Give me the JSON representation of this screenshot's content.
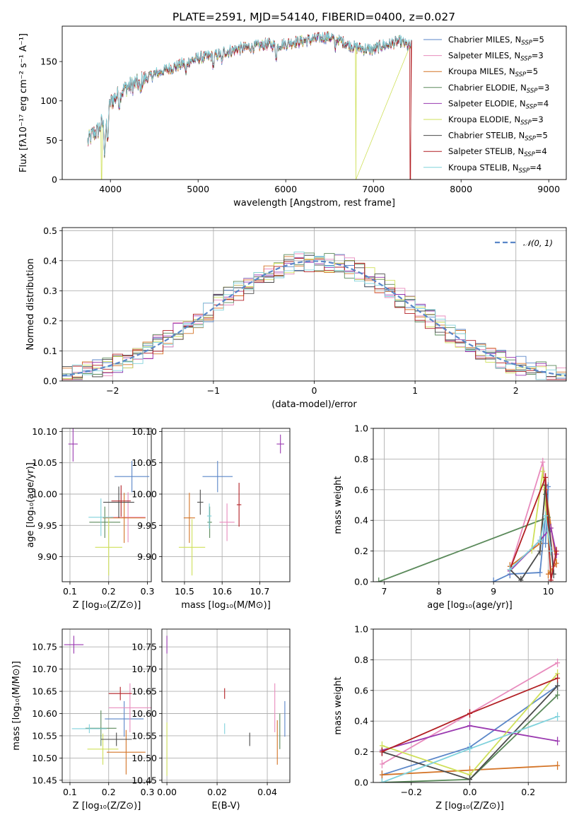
{
  "figure": {
    "title": "PLATE=2591, MJD=54140, FIBERID=0400, z=0.027"
  },
  "chart_data": [
    {
      "id": "spectrum",
      "type": "line",
      "title": "PLATE=2591, MJD=54140, FIBERID=0400, z=0.027",
      "xlabel": "wavelength [Angstrom, rest frame]",
      "ylabel": "Flux [fλ10⁻¹⁷ erg cm⁻² s⁻¹ A⁻¹]",
      "xlim": [
        3450,
        9200
      ],
      "ylim": [
        0,
        195
      ],
      "xticks": [
        4000,
        5000,
        6000,
        7000,
        8000,
        9000
      ],
      "yticks": [
        0,
        50,
        100,
        150
      ],
      "grid": false,
      "legend": "upper right",
      "continuum": {
        "x": [
          3740,
          3800,
          3860,
          3900,
          3950,
          4000,
          4100,
          4200,
          4300,
          4400,
          4500,
          4600,
          4700,
          4800,
          4900,
          5000,
          5100,
          5200,
          5300,
          5400,
          5500,
          5600,
          5700,
          5800,
          5900,
          6000,
          6100,
          6200,
          6300,
          6400,
          6500,
          6600,
          6700,
          6800,
          6900,
          7000,
          7100,
          7200,
          7300,
          7400
        ],
        "y": [
          48,
          58,
          62,
          72,
          70,
          98,
          110,
          118,
          122,
          128,
          134,
          138,
          142,
          146,
          150,
          154,
          156,
          158,
          162,
          164,
          167,
          168,
          170,
          172,
          170,
          172,
          175,
          176,
          178,
          180,
          181,
          178,
          172,
          168,
          166,
          165,
          170,
          172,
          176,
          170
        ]
      },
      "series": [
        {
          "name": "Chabrier MILES, N_SSP=5",
          "color": "#5a86c8",
          "dropout": null
        },
        {
          "name": "Salpeter MILES, N_SSP=3",
          "color": "#e88bbd",
          "dropout": null
        },
        {
          "name": "Kroupa MILES, N_SSP=5",
          "color": "#d47427",
          "dropout": null
        },
        {
          "name": "Chabrier ELODIE, N_SSP=3",
          "color": "#5b8a5b",
          "dropout": null
        },
        {
          "name": "Salpeter ELODIE, N_SSP=4",
          "color": "#9a39b0",
          "dropout": null
        },
        {
          "name": "Kroupa ELODIE, N_SSP=3",
          "color": "#cfe05a",
          "dropout": [
            3900,
            6800
          ]
        },
        {
          "name": "Chabrier STELIB, N_SSP=5",
          "color": "#4b4b4b",
          "dropout": null
        },
        {
          "name": "Salpeter STELIB, N_SSP=4",
          "color": "#b21f24",
          "dropout": [
            null,
            7420
          ]
        },
        {
          "name": "Kroupa STELIB, N_SSP=4",
          "color": "#80d2dc",
          "dropout": null
        }
      ]
    },
    {
      "id": "residuals",
      "type": "histogram",
      "xlabel": "(data-model)/error",
      "ylabel": "Normed distribution",
      "xlim": [
        -2.5,
        2.5
      ],
      "ylim": [
        0,
        0.51
      ],
      "xticks": [
        -2,
        -1,
        0,
        1,
        2
      ],
      "yticks": [
        0.0,
        0.1,
        0.2,
        0.3,
        0.4,
        0.5
      ],
      "grid": true,
      "legend": "upper right",
      "reference": {
        "name": "𝒩(0, 1)",
        "color": "#5a86c8",
        "mean": 0,
        "sigma": 1
      },
      "bin_width": 0.1
    },
    {
      "id": "age-vs-Z",
      "type": "errorbar",
      "xlabel": "Z [log₁₀(Z/Z⊙)]",
      "ylabel": "age  [log₁₀(age/yr)]",
      "xlim": [
        0.08,
        0.31
      ],
      "ylim": [
        9.86,
        10.105
      ],
      "xticks": [
        0.1,
        0.2,
        0.3
      ],
      "yticks": [
        9.9,
        9.95,
        10.0,
        10.05,
        10.1
      ],
      "grid": true,
      "points": [
        {
          "series": "Chabrier MILES",
          "x": 0.26,
          "y": 10.028,
          "xerr": 0.045,
          "yerr": 0.025
        },
        {
          "series": "Salpeter MILES",
          "x": 0.25,
          "y": 9.963,
          "xerr": 0.045,
          "yerr": 0.04
        },
        {
          "series": "Kroupa MILES",
          "x": 0.24,
          "y": 9.962,
          "xerr": 0.055,
          "yerr": 0.04
        },
        {
          "series": "Chabrier ELODIE",
          "x": 0.19,
          "y": 9.955,
          "xerr": 0.04,
          "yerr": 0.025
        },
        {
          "series": "Salpeter ELODIE",
          "x": 0.108,
          "y": 10.08,
          "xerr": 0.012,
          "yerr": 0.028
        },
        {
          "series": "Kroupa ELODIE",
          "x": 0.2,
          "y": 9.915,
          "xerr": 0.035,
          "yerr": 0.045
        },
        {
          "series": "Chabrier STELIB",
          "x": 0.226,
          "y": 9.987,
          "xerr": 0.04,
          "yerr": 0.025
        },
        {
          "series": "Salpeter STELIB",
          "x": 0.232,
          "y": 9.989,
          "xerr": 0.025,
          "yerr": 0.025
        },
        {
          "series": "Kroupa STELIB",
          "x": 0.18,
          "y": 9.963,
          "xerr": 0.032,
          "yerr": 0.03
        }
      ]
    },
    {
      "id": "age-vs-mass",
      "type": "errorbar",
      "xlabel": "mass [log₁₀(M/M⊙)]",
      "ylabel": "",
      "xlim": [
        10.44,
        10.78
      ],
      "ylim": [
        9.86,
        10.105
      ],
      "xticks": [
        10.5,
        10.6,
        10.7
      ],
      "yticks": [
        9.9,
        9.95,
        10.0,
        10.05,
        10.1
      ],
      "grid": true,
      "points": [
        {
          "series": "Chabrier MILES",
          "x": 10.588,
          "y": 10.028,
          "xerr": 0.04,
          "yerr": 0.025
        },
        {
          "series": "Salpeter MILES",
          "x": 10.613,
          "y": 9.955,
          "xerr": 0.02,
          "yerr": 0.03
        },
        {
          "series": "Kroupa MILES",
          "x": 10.513,
          "y": 9.962,
          "xerr": 0.015,
          "yerr": 0.04
        },
        {
          "series": "Chabrier ELODIE",
          "x": 10.567,
          "y": 9.955,
          "xerr": 0.006,
          "yerr": 0.025
        },
        {
          "series": "Salpeter ELODIE",
          "x": 10.755,
          "y": 10.08,
          "xerr": 0.01,
          "yerr": 0.015
        },
        {
          "series": "Kroupa ELODIE",
          "x": 10.52,
          "y": 9.915,
          "xerr": 0.035,
          "yerr": 0.045
        },
        {
          "series": "Chabrier STELIB",
          "x": 10.542,
          "y": 9.987,
          "xerr": 0.008,
          "yerr": 0.02
        },
        {
          "series": "Salpeter STELIB",
          "x": 10.645,
          "y": 9.983,
          "xerr": 0.006,
          "yerr": 0.035
        },
        {
          "series": "Kroupa STELIB",
          "x": 10.566,
          "y": 9.965,
          "xerr": 0.006,
          "yerr": 0.02
        }
      ]
    },
    {
      "id": "weight-vs-age",
      "type": "line",
      "xlabel": "age  [log₁₀(age/yr)]",
      "ylabel": "mass weight",
      "xlim": [
        6.8,
        10.33
      ],
      "ylim": [
        0,
        1.0
      ],
      "xticks": [
        7,
        8,
        9,
        10
      ],
      "yticks": [
        0.0,
        0.2,
        0.4,
        0.6,
        0.8,
        1.0
      ],
      "grid": true,
      "series": [
        {
          "name": "Chabrier MILES",
          "points": [
            [
              9.0,
              0.0
            ],
            [
              9.3,
              0.05
            ],
            [
              9.85,
              0.06
            ],
            [
              10.0,
              0.62
            ],
            [
              9.95,
              0.25
            ]
          ]
        },
        {
          "name": "Salpeter MILES",
          "points": [
            [
              9.3,
              0.08
            ],
            [
              9.9,
              0.78
            ],
            [
              10.1,
              0.1
            ]
          ]
        },
        {
          "name": "Kroupa MILES",
          "points": [
            [
              9.3,
              0.1
            ],
            [
              9.85,
              0.25
            ],
            [
              9.95,
              0.6
            ],
            [
              10.15,
              0.12
            ],
            [
              10.0,
              0.05
            ]
          ]
        },
        {
          "name": "Chabrier ELODIE",
          "points": [
            [
              6.9,
              0.0
            ],
            [
              10.0,
              0.42
            ],
            [
              9.95,
              0.57
            ]
          ]
        },
        {
          "name": "Salpeter ELODIE",
          "points": [
            [
              9.3,
              0.07
            ],
            [
              9.85,
              0.27
            ],
            [
              10.05,
              0.35
            ],
            [
              10.15,
              0.18
            ]
          ]
        },
        {
          "name": "Kroupa ELODIE",
          "points": [
            [
              9.7,
              0.21
            ],
            [
              9.9,
              0.72
            ],
            [
              10.05,
              0.07
            ]
          ]
        },
        {
          "name": "Chabrier STELIB",
          "points": [
            [
              9.3,
              0.08
            ],
            [
              9.5,
              0.01
            ],
            [
              9.85,
              0.2
            ],
            [
              9.95,
              0.63
            ],
            [
              10.1,
              0.05
            ]
          ]
        },
        {
          "name": "Salpeter STELIB",
          "points": [
            [
              9.3,
              0.08
            ],
            [
              9.95,
              0.68
            ],
            [
              10.05,
              0.01
            ],
            [
              10.15,
              0.2
            ]
          ]
        },
        {
          "name": "Kroupa STELIB",
          "points": [
            [
              9.3,
              0.08
            ],
            [
              9.85,
              0.27
            ],
            [
              9.95,
              0.43
            ],
            [
              10.05,
              0.2
            ]
          ]
        }
      ]
    },
    {
      "id": "mass-vs-Z",
      "type": "errorbar",
      "xlabel": "Z [log₁₀(Z/Z⊙)]",
      "ylabel": "mass [log₁₀(M/M⊙)]",
      "xlim": [
        0.08,
        0.31
      ],
      "ylim": [
        10.445,
        10.79
      ],
      "xticks": [
        0.1,
        0.2,
        0.3
      ],
      "yticks": [
        10.45,
        10.5,
        10.55,
        10.6,
        10.65,
        10.7,
        10.75
      ],
      "grid": true,
      "points": [
        {
          "series": "Chabrier MILES",
          "x": 0.24,
          "y": 10.588,
          "xerr": 0.05,
          "yerr": 0.04
        },
        {
          "series": "Salpeter MILES",
          "x": 0.255,
          "y": 10.613,
          "xerr": 0.055,
          "yerr": 0.055
        },
        {
          "series": "Kroupa MILES",
          "x": 0.245,
          "y": 10.513,
          "xerr": 0.05,
          "yerr": 0.05
        },
        {
          "series": "Chabrier ELODIE",
          "x": 0.18,
          "y": 10.567,
          "xerr": 0.04,
          "yerr": 0.04
        },
        {
          "series": "Salpeter ELODIE",
          "x": 0.11,
          "y": 10.755,
          "xerr": 0.025,
          "yerr": 0.02
        },
        {
          "series": "Kroupa ELODIE",
          "x": 0.185,
          "y": 10.52,
          "xerr": 0.04,
          "yerr": 0.035
        },
        {
          "series": "Chabrier STELIB",
          "x": 0.22,
          "y": 10.542,
          "xerr": 0.04,
          "yerr": 0.015
        },
        {
          "series": "Salpeter STELIB",
          "x": 0.23,
          "y": 10.645,
          "xerr": 0.03,
          "yerr": 0.015
        },
        {
          "series": "Kroupa STELIB",
          "x": 0.15,
          "y": 10.566,
          "xerr": 0.045,
          "yerr": 0.01
        }
      ]
    },
    {
      "id": "mass-vs-EBV",
      "type": "errorbar",
      "xlabel": "E(B-V)",
      "ylabel": "",
      "xlim": [
        -0.002,
        0.049
      ],
      "ylim": [
        10.445,
        10.79
      ],
      "xticks": [
        0.0,
        0.02,
        0.04
      ],
      "yticks": [
        10.45,
        10.5,
        10.55,
        10.6,
        10.65,
        10.7,
        10.75
      ],
      "grid": true,
      "points": [
        {
          "series": "Chabrier MILES",
          "x": 0.047,
          "y": 10.588,
          "xerr": 0,
          "yerr": 0.04
        },
        {
          "series": "Salpeter MILES",
          "x": 0.043,
          "y": 10.613,
          "xerr": 0,
          "yerr": 0.055
        },
        {
          "series": "Kroupa MILES",
          "x": 0.044,
          "y": 10.535,
          "xerr": 0,
          "yerr": 0.05
        },
        {
          "series": "Chabrier ELODIE",
          "x": 0.045,
          "y": 10.56,
          "xerr": 0,
          "yerr": 0.04
        },
        {
          "series": "Salpeter ELODIE",
          "x": 0.0,
          "y": 10.755,
          "xerr": 0,
          "yerr": 0.02
        },
        {
          "series": "Kroupa ELODIE",
          "x": 0.0,
          "y": 10.52,
          "xerr": 0,
          "yerr": 0.06
        },
        {
          "series": "Chabrier STELIB",
          "x": 0.033,
          "y": 10.542,
          "xerr": 0,
          "yerr": 0.015
        },
        {
          "series": "Salpeter STELIB",
          "x": 0.023,
          "y": 10.645,
          "xerr": 0,
          "yerr": 0.012
        },
        {
          "series": "Kroupa STELIB",
          "x": 0.023,
          "y": 10.566,
          "xerr": 0,
          "yerr": 0.012
        }
      ]
    },
    {
      "id": "weight-vs-Z",
      "type": "line",
      "xlabel": "Z [log₁₀(Z/Z⊙)]",
      "ylabel": "mass weight",
      "xlim": [
        -0.33,
        0.33
      ],
      "ylim": [
        0,
        1.0
      ],
      "xticks": [
        -0.2,
        0.0,
        0.2
      ],
      "yticks": [
        0.0,
        0.2,
        0.4,
        0.6,
        0.8,
        1.0
      ],
      "grid": true,
      "series": [
        {
          "name": "Chabrier MILES",
          "points": [
            [
              -0.3,
              0.05
            ],
            [
              0.0,
              0.23
            ],
            [
              0.3,
              0.63
            ]
          ]
        },
        {
          "name": "Salpeter MILES",
          "points": [
            [
              -0.3,
              0.12
            ],
            [
              0.0,
              0.45
            ],
            [
              0.3,
              0.78
            ]
          ]
        },
        {
          "name": "Kroupa MILES",
          "points": [
            [
              -0.3,
              0.05
            ],
            [
              0.0,
              0.08
            ],
            [
              0.3,
              0.11
            ]
          ]
        },
        {
          "name": "Chabrier ELODIE",
          "points": [
            [
              -0.3,
              0.0
            ],
            [
              0.0,
              0.02
            ],
            [
              0.3,
              0.57
            ]
          ]
        },
        {
          "name": "Salpeter ELODIE",
          "points": [
            [
              -0.3,
              0.21
            ],
            [
              0.0,
              0.37
            ],
            [
              0.3,
              0.27
            ]
          ]
        },
        {
          "name": "Kroupa ELODIE",
          "points": [
            [
              -0.3,
              0.24
            ],
            [
              0.0,
              0.05
            ],
            [
              0.3,
              0.71
            ]
          ]
        },
        {
          "name": "Chabrier STELIB",
          "points": [
            [
              -0.3,
              0.2
            ],
            [
              0.0,
              0.02
            ],
            [
              0.3,
              0.63
            ]
          ]
        },
        {
          "name": "Salpeter STELIB",
          "points": [
            [
              -0.3,
              0.2
            ],
            [
              0.0,
              0.45
            ],
            [
              0.3,
              0.68
            ]
          ]
        },
        {
          "name": "Kroupa STELIB",
          "points": [
            [
              -0.3,
              0.0
            ],
            [
              0.0,
              0.22
            ],
            [
              0.3,
              0.43
            ]
          ]
        }
      ]
    }
  ]
}
